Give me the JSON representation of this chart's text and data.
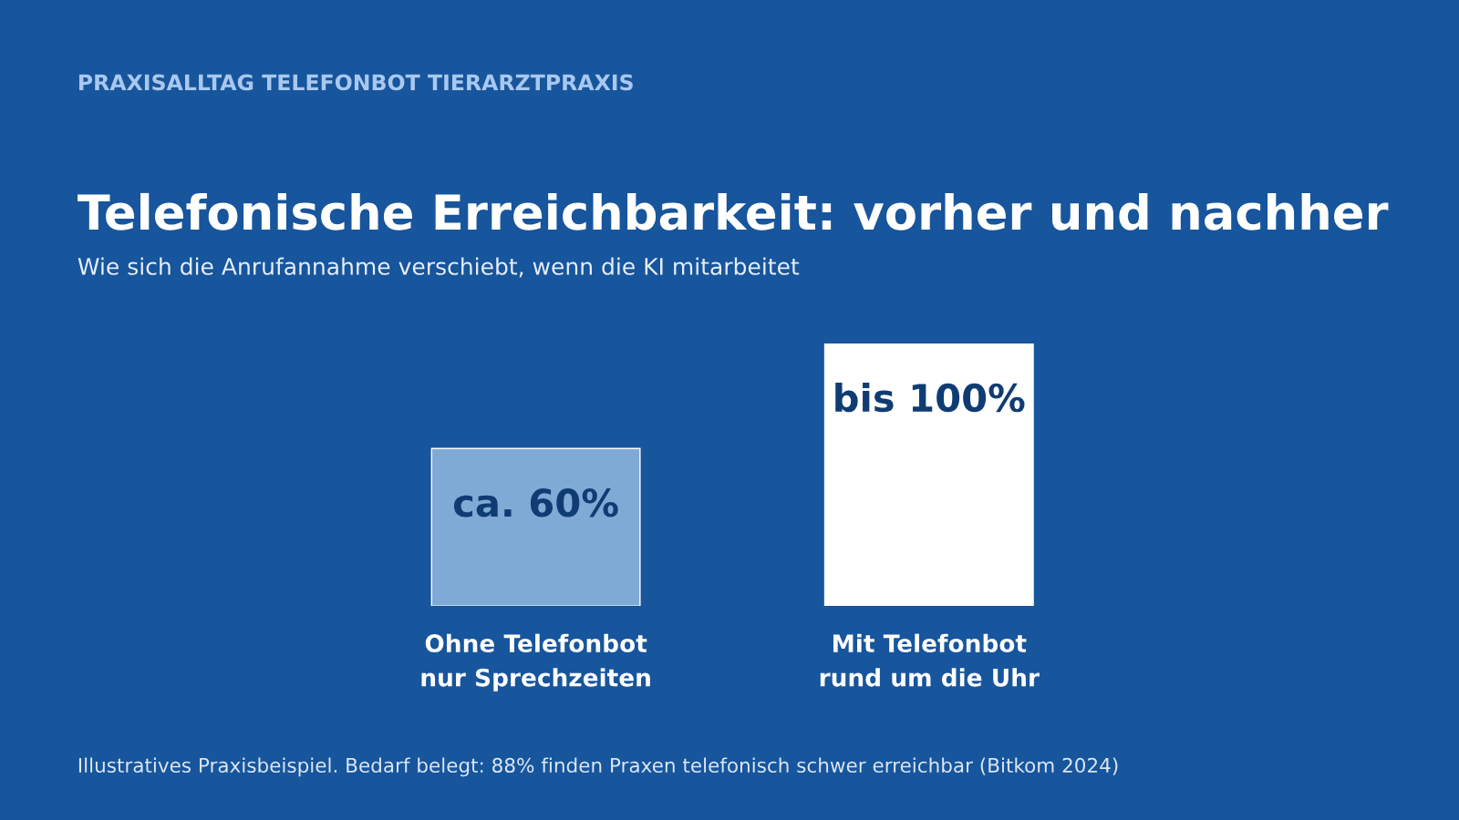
{
  "chart_data": {
    "type": "bar",
    "title": "Telefonische Erreichbarkeit: vorher und nachher",
    "subtitle": "Wie sich die Anrufannahme verschiebt, wenn die KI mitarbeitet",
    "annotations": [
      "PRAXISALLTAG TELEFONBOT TIERARZTPRAXIS",
      "Illustratives Praxisbeispiel. Bedarf belegt: 88% finden Praxen telefonisch schwer erreichbar (Bitkom 2024)"
    ],
    "categories": [
      "Ohne Telefonbot\nnur Sprechzeiten",
      "Mit Telefonbot\nrund um die Uhr"
    ],
    "values": [
      60,
      100
    ],
    "colors": [
      "#80aad6",
      "#ffffff"
    ],
    "value_labels": [
      "ca. 60%",
      "bis 100%"
    ],
    "grid": false,
    "legend": false
  }
}
